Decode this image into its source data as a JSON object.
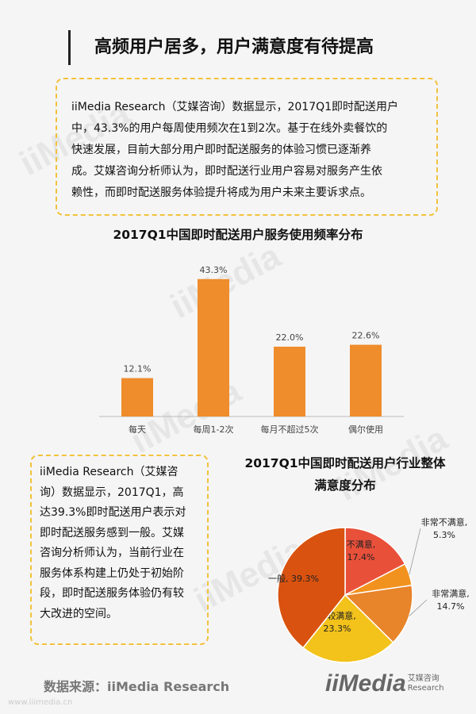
{
  "header": {
    "title": "高频用户居多，用户满意度有待提高"
  },
  "box1": {
    "lines": [
      "iiMedia Research（艾媒咨询）数据显示，2017Q1即时配送用户",
      "中，43.3%的用户每周使用频次在1到2次。基于在线外卖餐饮的",
      "快速发展，目前大部分用户即时配送服务的体验习惯已逐渐养",
      "成。艾媒咨询分析师认为，即时配送行业用户容易对服务产生依",
      "赖性，而即时配送服务体验提升将成为用户未来主要诉求点。"
    ]
  },
  "box2": {
    "lines": [
      "iiMedia Research（艾媒咨",
      "询）数据显示，2017Q1，高",
      "达39.3%即时配送用户表示对",
      "即时配送服务感到一般。艾媒",
      "咨询分析师认为，当前行业在",
      "服务体系构建上仍处于初始阶",
      "段，即时配送服务体验仍有较",
      "大改进的空间。"
    ]
  },
  "chart_data": [
    {
      "type": "bar",
      "title": "2017Q1中国即时配送用户服务使用频率分布",
      "categories": [
        "每天",
        "每周1-2次",
        "每月不超过5次",
        "偶尔使用"
      ],
      "values": [
        12.1,
        43.3,
        22.0,
        22.6
      ],
      "value_labels": [
        "12.1%",
        "43.3%",
        "22.0%",
        "22.6%"
      ],
      "color": "#ef8c2b",
      "xlabel": "",
      "ylabel": "",
      "ylim": [
        0,
        45
      ],
      "grid": false
    },
    {
      "type": "pie",
      "title_lines": [
        "2017Q1中国即时配送用户行业整体",
        "满意度分布"
      ],
      "slices": [
        {
          "label_lines": [
            "不满意,",
            "17.4%"
          ],
          "value": 17.4,
          "color": "#e9503a"
        },
        {
          "label_lines": [
            "非常不满意,",
            "5.3%"
          ],
          "value": 5.3,
          "color": "#f2921e"
        },
        {
          "label_lines": [
            "非常满意,",
            "14.7%"
          ],
          "value": 14.7,
          "color": "#e8842a"
        },
        {
          "label_lines": [
            "比较满意,",
            "23.3%"
          ],
          "value": 23.3,
          "color": "#f3c21b"
        },
        {
          "label_lines": [
            "一般, 39.3%"
          ],
          "value": 39.3,
          "color": "#d9520f"
        }
      ]
    }
  ],
  "footer": {
    "source": "数据来源：iiMedia Research",
    "logo_main": "iiMedia",
    "logo_cn": "艾媒咨询",
    "logo_en": "Research",
    "url": "www.iiimedia.cn"
  },
  "watermark": "iiMedia"
}
